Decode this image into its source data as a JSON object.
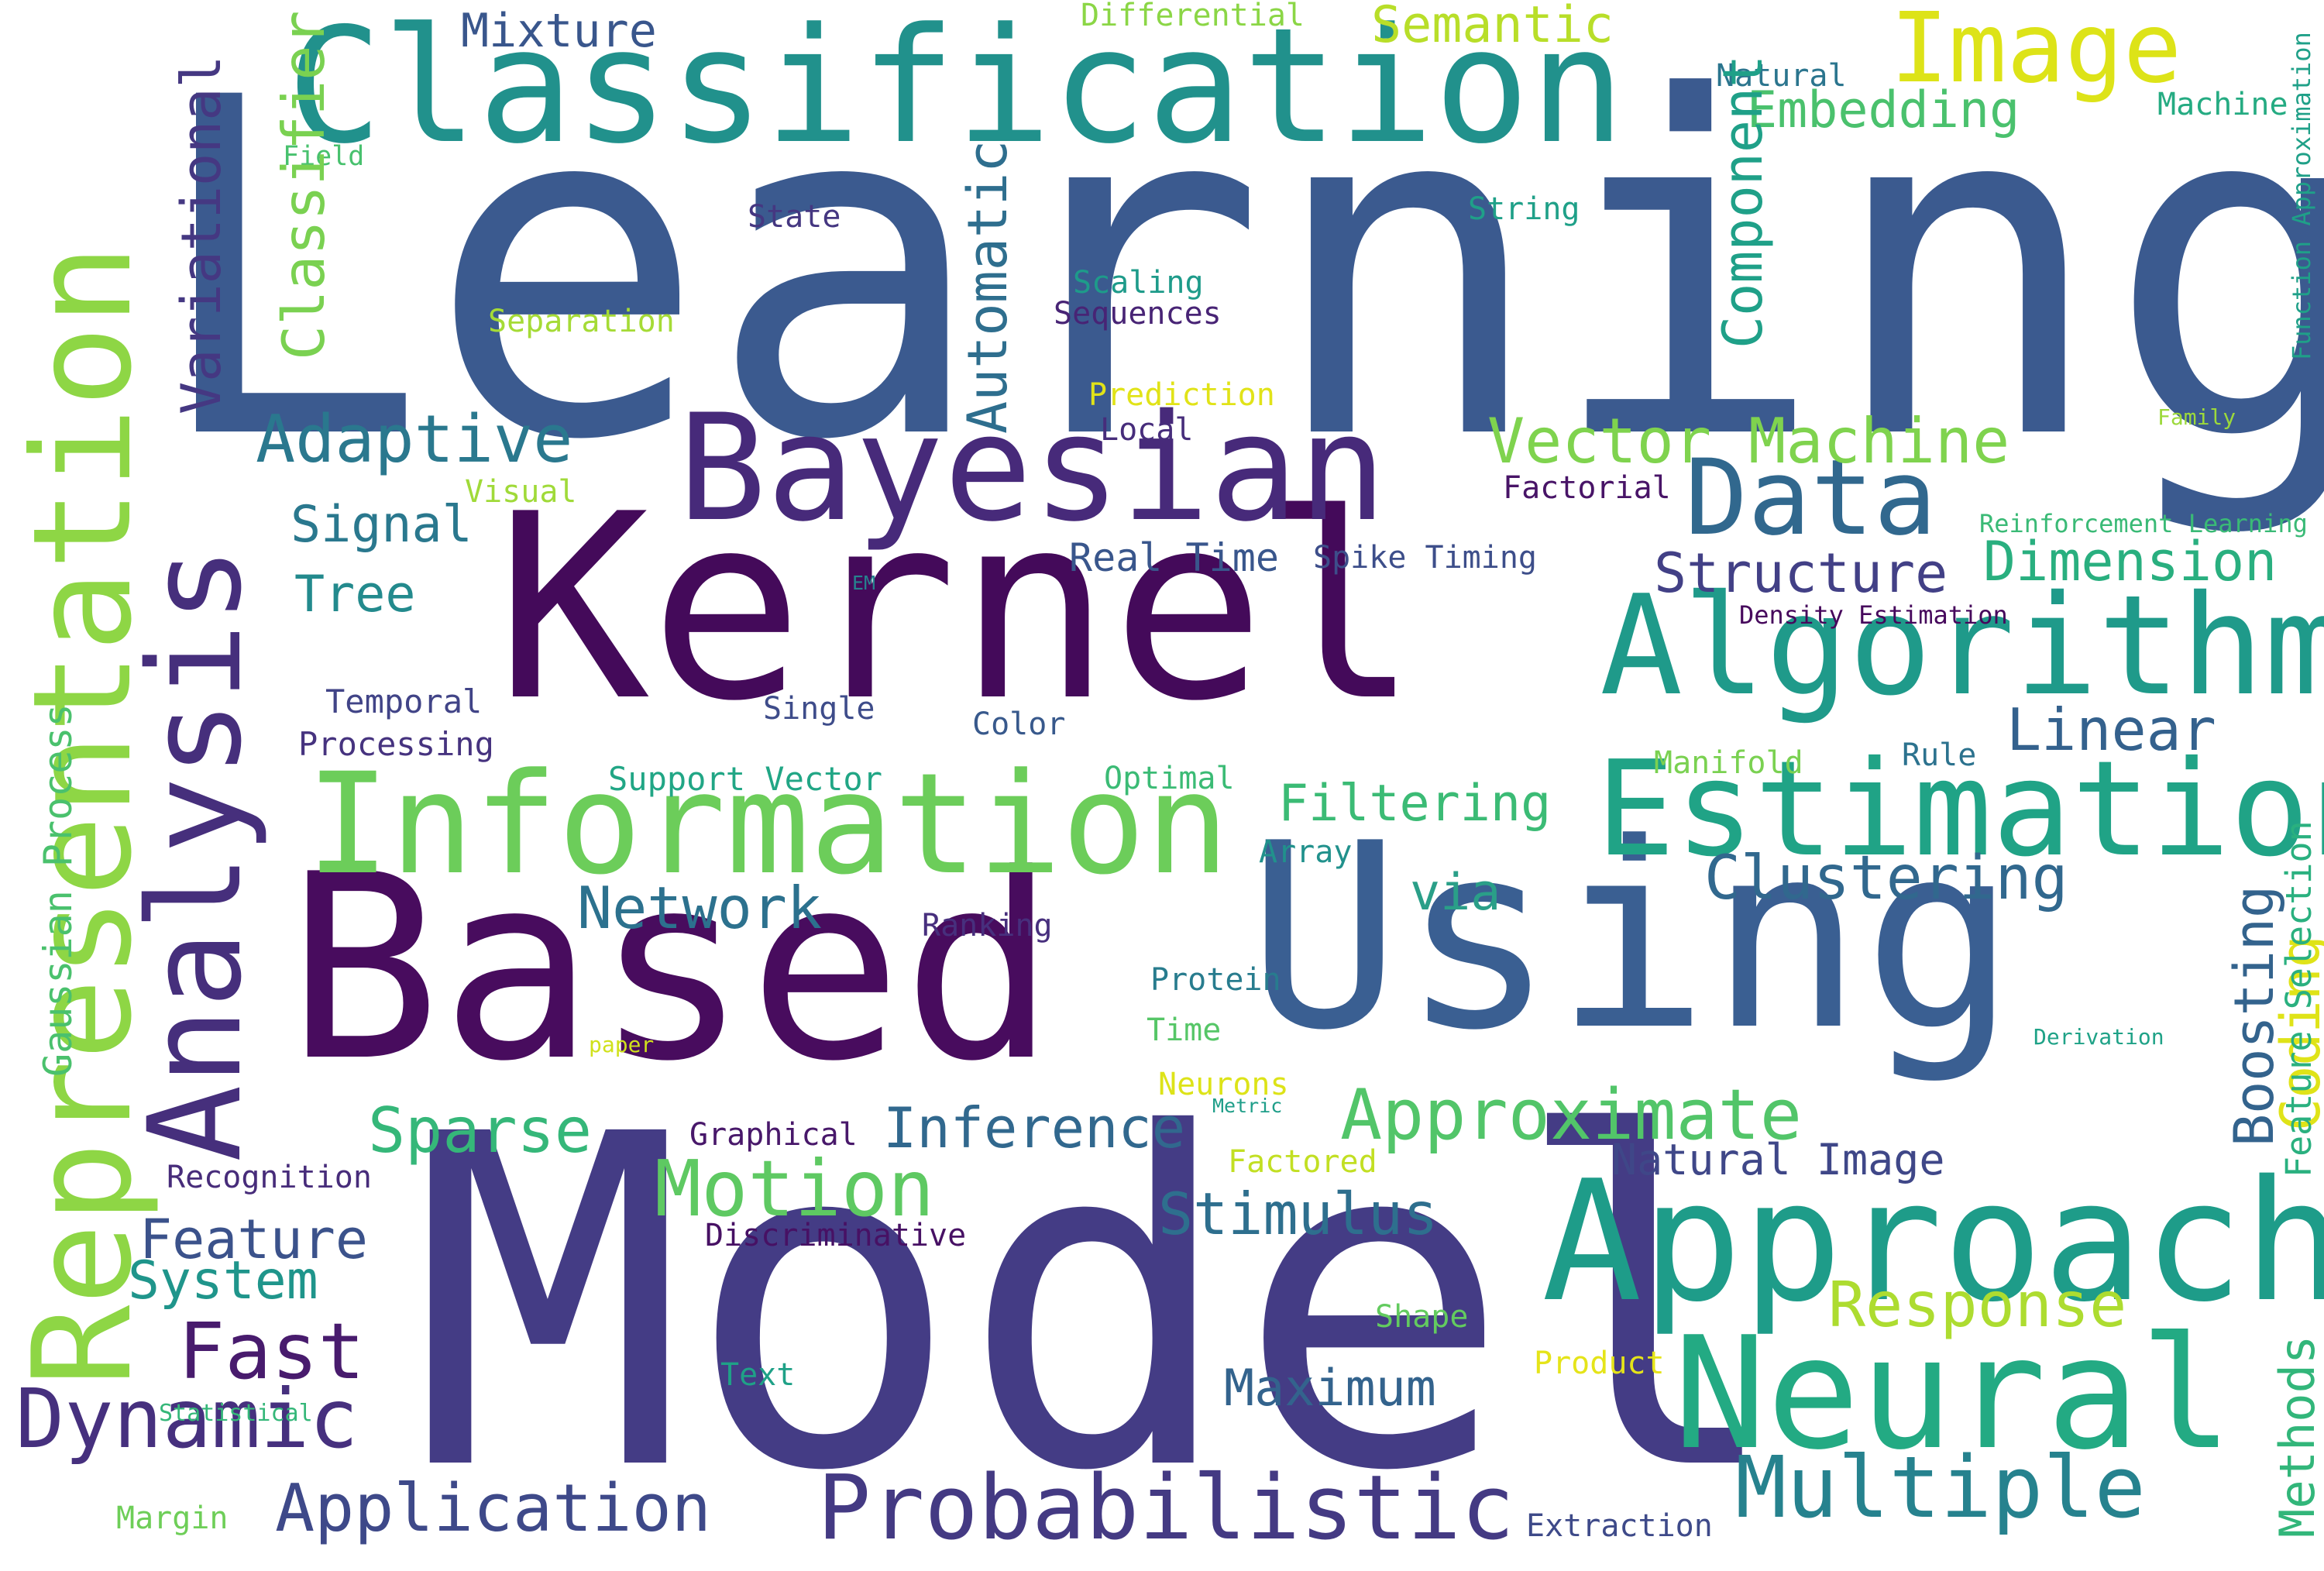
{
  "colors": {
    "background": "#ffffff"
  },
  "words": [
    {
      "text": "Learning",
      "color": "#3b5a8f"
    },
    {
      "text": "Model",
      "color": "#443c85"
    },
    {
      "text": "Kernel",
      "color": "#440a5a"
    },
    {
      "text": "Based",
      "color": "#480c5e"
    },
    {
      "text": "Using",
      "color": "#3a5f92"
    },
    {
      "text": "Classification",
      "color": "#21918c"
    },
    {
      "text": "Bayesian",
      "color": "#472a7a"
    },
    {
      "text": "Information",
      "color": "#6ccd5a"
    },
    {
      "text": "Algorithm",
      "color": "#1f9a8a"
    },
    {
      "text": "Estimation",
      "color": "#20a386"
    },
    {
      "text": "Approach",
      "color": "#1e9c89"
    },
    {
      "text": "Neural",
      "color": "#23aa83"
    },
    {
      "text": "Image",
      "color": "#dde318"
    },
    {
      "text": "Data",
      "color": "#31688e"
    },
    {
      "text": "Representation",
      "color": "#8ed645"
    },
    {
      "text": "Analysis",
      "color": "#462f7c"
    },
    {
      "text": "Probabilistic",
      "color": "#443a83"
    },
    {
      "text": "Multiple",
      "color": "#26828e"
    },
    {
      "text": "Motion",
      "color": "#5ec962"
    },
    {
      "text": "Approximate",
      "color": "#52c569"
    },
    {
      "text": "Dynamic",
      "color": "#46307e"
    },
    {
      "text": "Application",
      "color": "#3e4989"
    },
    {
      "text": "Fast",
      "color": "#481b6d"
    },
    {
      "text": "Vector Machine",
      "color": "#7fd34e"
    },
    {
      "text": "Response",
      "color": "#addc30"
    },
    {
      "text": "Adaptive",
      "color": "#2a788e"
    },
    {
      "text": "Network",
      "color": "#2c718e"
    },
    {
      "text": "Feature",
      "color": "#3b528b"
    },
    {
      "text": "Clustering",
      "color": "#31688e"
    },
    {
      "text": "Linear",
      "color": "#34618d"
    },
    {
      "text": "Stimulus",
      "color": "#2e6f8e"
    },
    {
      "text": "Maximum",
      "color": "#33638d"
    },
    {
      "text": "Inference",
      "color": "#31688e"
    },
    {
      "text": "Sparse",
      "color": "#35b779"
    },
    {
      "text": "System",
      "color": "#1f958b"
    },
    {
      "text": "Dimension",
      "color": "#29af7f"
    },
    {
      "text": "Structure",
      "color": "#424086"
    },
    {
      "text": "Filtering",
      "color": "#3bbb75"
    },
    {
      "text": "Embedding",
      "color": "#4ac16d"
    },
    {
      "text": "Mixture",
      "color": "#39568c"
    },
    {
      "text": "Semantic",
      "color": "#b8de29"
    },
    {
      "text": "Signal",
      "color": "#2a788e"
    },
    {
      "text": "Tree",
      "color": "#238a8d"
    },
    {
      "text": "via",
      "color": "#2a9f88"
    },
    {
      "text": "Natural Image",
      "color": "#3f4788"
    },
    {
      "text": "Extraction",
      "color": "#3e4a89"
    },
    {
      "text": "Real Time",
      "color": "#39568c"
    },
    {
      "text": "Ranking",
      "color": "#472f7d"
    },
    {
      "text": "Protein",
      "color": "#287c8e"
    },
    {
      "text": "Time",
      "color": "#56c667"
    },
    {
      "text": "Neurons",
      "color": "#dde318"
    },
    {
      "text": "Metric",
      "color": "#1f9e89"
    },
    {
      "text": "Factored",
      "color": "#c2df23"
    },
    {
      "text": "Graphical",
      "color": "#48186a"
    },
    {
      "text": "Discriminative",
      "color": "#471164"
    },
    {
      "text": "Recognition",
      "color": "#472c7a"
    },
    {
      "text": "Shape",
      "color": "#63cb5f"
    },
    {
      "text": "Product",
      "color": "#e5e419"
    },
    {
      "text": "Text",
      "color": "#1fa187"
    },
    {
      "text": "Statistical",
      "color": "#35b779"
    },
    {
      "text": "Margin",
      "color": "#6ece58"
    },
    {
      "text": "Support Vector",
      "color": "#21a685"
    },
    {
      "text": "Optimal",
      "color": "#3bbb75"
    },
    {
      "text": "Array",
      "color": "#21918c"
    },
    {
      "text": "Color",
      "color": "#38598c"
    },
    {
      "text": "Single",
      "color": "#3e4c8a"
    },
    {
      "text": "Temporal",
      "color": "#414487"
    },
    {
      "text": "Processing",
      "color": "#46337f"
    },
    {
      "text": "Manifold",
      "color": "#7ad151"
    },
    {
      "text": "Rule",
      "color": "#2c728e"
    },
    {
      "text": "Density Estimation",
      "color": "#46085c"
    },
    {
      "text": "EM",
      "color": "#26828e"
    },
    {
      "text": "Spike Timing",
      "color": "#3d4e8a"
    },
    {
      "text": "Factorial",
      "color": "#481467"
    },
    {
      "text": "Visual",
      "color": "#a0da39"
    },
    {
      "text": "Local",
      "color": "#472d7b"
    },
    {
      "text": "Prediction",
      "color": "#e1e318"
    },
    {
      "text": "Scaling",
      "color": "#1e9b8a"
    },
    {
      "text": "Sequences",
      "color": "#482475"
    },
    {
      "text": "Separation",
      "color": "#a5db36"
    },
    {
      "text": "State",
      "color": "#453781"
    },
    {
      "text": "String",
      "color": "#1fa088"
    },
    {
      "text": "Field",
      "color": "#48c16e"
    },
    {
      "text": "Differential",
      "color": "#8bd646"
    },
    {
      "text": "Natural",
      "color": "#2b758e"
    },
    {
      "text": "Machine",
      "color": "#25ab82"
    },
    {
      "text": "Reinforcement Learning",
      "color": "#3aba76"
    },
    {
      "text": "Family",
      "color": "#9cd93b"
    },
    {
      "text": "paper",
      "color": "#d0e11c"
    },
    {
      "text": "Derivation",
      "color": "#1fa287"
    },
    {
      "text": "Boosting",
      "color": "#33638d"
    },
    {
      "text": "Coding",
      "color": "#dfe318"
    },
    {
      "text": "Feature Selection",
      "color": "#2ab07f"
    },
    {
      "text": "Methods",
      "color": "#32b67a"
    },
    {
      "text": "Function Approximation",
      "color": "#1fa088"
    },
    {
      "text": "Component",
      "color": "#1fa088"
    },
    {
      "text": "Automatic",
      "color": "#2e6e8e"
    },
    {
      "text": "Classifier",
      "color": "#7ad151"
    },
    {
      "text": "Variational",
      "color": "#453882"
    },
    {
      "text": "Gaussian Process",
      "color": "#4ac16d"
    }
  ]
}
